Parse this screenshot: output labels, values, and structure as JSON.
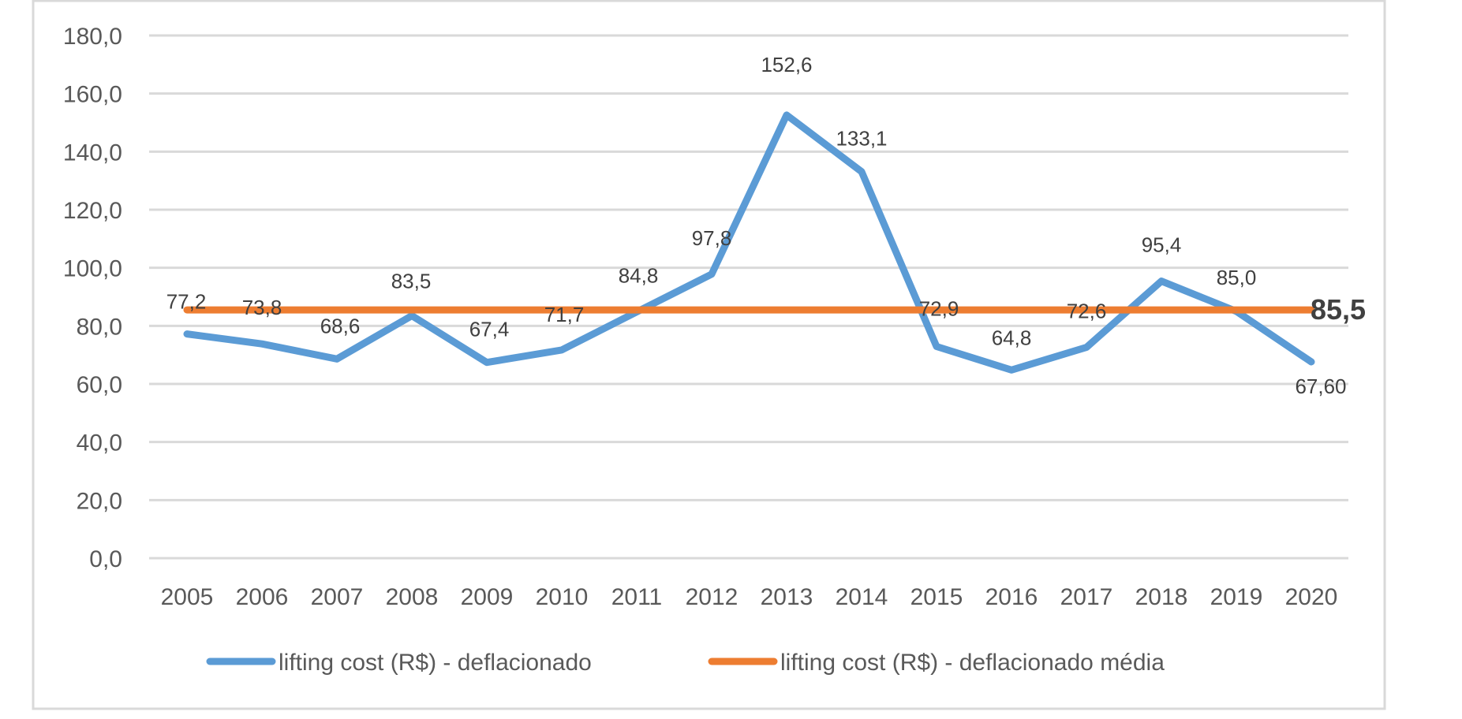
{
  "chart_data": {
    "type": "line",
    "title": "",
    "xlabel": "",
    "ylabel": "",
    "ylim": [
      0,
      180
    ],
    "y_ticks": [
      "0,0",
      "20,0",
      "40,0",
      "60,0",
      "80,0",
      "100,0",
      "120,0",
      "140,0",
      "160,0",
      "180,0"
    ],
    "y_tick_values": [
      0,
      20,
      40,
      60,
      80,
      100,
      120,
      140,
      160,
      180
    ],
    "grid": true,
    "legend_position": "bottom",
    "categories": [
      "2005",
      "2006",
      "2007",
      "2008",
      "2009",
      "2010",
      "2011",
      "2012",
      "2013",
      "2014",
      "2015",
      "2016",
      "2017",
      "2018",
      "2019",
      "2020"
    ],
    "series": [
      {
        "name": "lifting cost (R$) - deflacionado",
        "color": "#5B9BD5",
        "values": [
          77.2,
          73.8,
          68.6,
          83.5,
          67.4,
          71.7,
          84.8,
          97.8,
          152.6,
          133.1,
          72.9,
          64.8,
          72.6,
          95.4,
          85.0,
          67.6
        ],
        "labels": [
          "77,2",
          "73,8",
          "68,6",
          "83,5",
          "67,4",
          "71,7",
          "84,8",
          "97,8",
          "152,6",
          "133,1",
          "72,9",
          "64,8",
          "72,6",
          "95,4",
          "85,0",
          "67,60"
        ]
      },
      {
        "name": "lifting cost (R$) - deflacionado média",
        "color": "#ED7D31",
        "values": [
          85.5,
          85.5,
          85.5,
          85.5,
          85.5,
          85.5,
          85.5,
          85.5,
          85.5,
          85.5,
          85.5,
          85.5,
          85.5,
          85.5,
          85.5,
          85.5
        ],
        "end_label": "85,5"
      }
    ]
  }
}
